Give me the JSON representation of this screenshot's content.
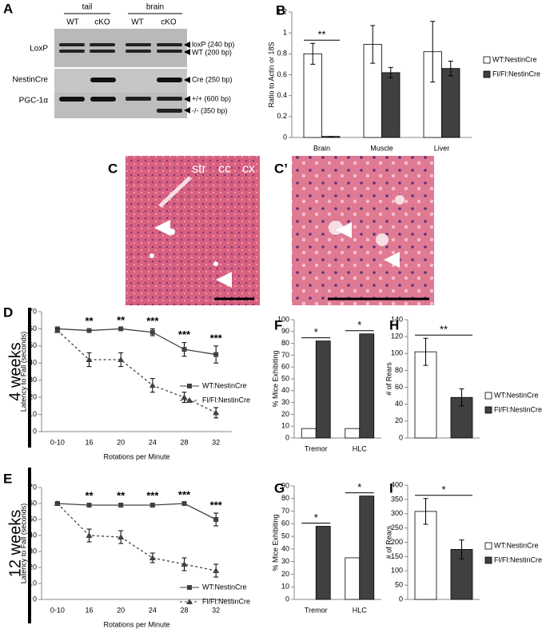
{
  "gel": {
    "panel": "A",
    "groups": [
      "tail",
      "brain"
    ],
    "lanes": [
      "WT",
      "cKO",
      "WT",
      "cKO"
    ],
    "rows": [
      "LoxP",
      "NestinCre",
      "PGC-1α"
    ],
    "bands": [
      "loxP (240 bp)",
      "WT (200 bp)",
      "Cre (250 bp)",
      "+/+ (600 bp)",
      "-/- (350 bp)"
    ]
  },
  "histology": {
    "panels": [
      "C",
      "C’"
    ],
    "regions": [
      "str",
      "cc",
      "cx"
    ]
  },
  "chart_data": [
    {
      "type": "bar",
      "panel": "B",
      "ylabel": "Ratio to Actin or 18S",
      "categories": [
        "Brain",
        "Muscle",
        "Liver"
      ],
      "series": [
        {
          "name": "WT:NestinCre",
          "color": "#ffffff",
          "values": [
            0.8,
            0.89,
            0.82
          ],
          "errors": [
            0.1,
            0.18,
            0.29
          ]
        },
        {
          "name": "Fl/Fl:NestinCre",
          "color": "#404040",
          "values": [
            0.01,
            0.62,
            0.66
          ],
          "errors": [
            0,
            0.05,
            0.07
          ]
        }
      ],
      "annotations": [
        "**",
        null,
        null
      ],
      "ylim": [
        0,
        1.2
      ],
      "yticks": [
        0,
        0.2,
        0.4,
        0.6,
        0.8,
        1,
        1.2
      ]
    },
    {
      "type": "line",
      "panel": "D",
      "side_label": "4 weeks",
      "xlabel": "Rotations per Minute",
      "ylabel": "Latency to Fall (seconds)",
      "categories": [
        "0-10",
        "16",
        "20",
        "24",
        "28",
        "32"
      ],
      "series": [
        {
          "name": "WT:NestinCre",
          "color": "#404040",
          "line_style": "solid",
          "marker": "square",
          "values": [
            60,
            59,
            60,
            58,
            48,
            45
          ],
          "errors": [
            1,
            1,
            0.5,
            2,
            4,
            5
          ]
        },
        {
          "name": "Fl/Fl:NestinCre",
          "color": "#404040",
          "line_style": "dashed",
          "marker": "triangle",
          "values": [
            59,
            42,
            42,
            27,
            20,
            11
          ],
          "errors": [
            1,
            4,
            4,
            4,
            3,
            3
          ]
        }
      ],
      "annotations": [
        null,
        "**",
        "**",
        "***",
        "***",
        "***"
      ],
      "ylim": [
        0,
        70
      ],
      "yticks": [
        0,
        10,
        20,
        30,
        40,
        50,
        60,
        70
      ]
    },
    {
      "type": "line",
      "panel": "E",
      "side_label": "12 weeks",
      "xlabel": "Rotations per Minute",
      "ylabel": "Latency to Fall (seconds)",
      "categories": [
        "0-10",
        "16",
        "20",
        "24",
        "28",
        "32"
      ],
      "series": [
        {
          "name": "WT:NestinCre",
          "color": "#404040",
          "line_style": "solid",
          "marker": "square",
          "values": [
            60,
            59,
            59,
            59,
            60,
            50
          ],
          "errors": [
            0.5,
            1,
            1,
            1,
            0.5,
            4
          ]
        },
        {
          "name": "Fl/Fl:NestinCre",
          "color": "#404040",
          "line_style": "dashed",
          "marker": "triangle",
          "values": [
            60,
            40,
            39,
            26,
            22,
            18
          ],
          "errors": [
            0.5,
            4,
            4,
            3,
            4,
            4
          ]
        }
      ],
      "annotations": [
        null,
        "**",
        "**",
        "***",
        "***",
        "***"
      ],
      "ylim": [
        0,
        70
      ],
      "yticks": [
        0,
        10,
        20,
        30,
        40,
        50,
        60,
        70
      ]
    },
    {
      "type": "bar",
      "panel": "F",
      "ylabel": "% Mice Exhibiting",
      "categories": [
        "Tremor",
        "HLC"
      ],
      "series": [
        {
          "name": "WT:NestinCre",
          "color": "#ffffff",
          "values": [
            8,
            8
          ]
        },
        {
          "name": "Fl/Fl:NestinCre",
          "color": "#404040",
          "values": [
            82,
            88
          ]
        }
      ],
      "annotations": [
        "*",
        "*"
      ],
      "ylim": [
        0,
        100
      ],
      "yticks": [
        0,
        10,
        20,
        30,
        40,
        50,
        60,
        70,
        80,
        90,
        100
      ]
    },
    {
      "type": "bar",
      "panel": "G",
      "ylabel": "% Mice Exhibiting",
      "categories": [
        "Tremor",
        "HLC"
      ],
      "series": [
        {
          "name": "WT:NestinCre",
          "color": "#ffffff",
          "values": [
            0,
            33
          ]
        },
        {
          "name": "Fl/Fl:NestinCre",
          "color": "#404040",
          "values": [
            58,
            82
          ]
        }
      ],
      "annotations": [
        "*",
        "*"
      ],
      "ylim": [
        0,
        90
      ],
      "yticks": [
        0,
        10,
        20,
        30,
        40,
        50,
        60,
        70,
        80,
        90
      ]
    },
    {
      "type": "bar",
      "panel": "H",
      "ylabel": "# of Rears",
      "categories": [
        null
      ],
      "series": [
        {
          "name": "WT:NestinCre",
          "color": "#ffffff",
          "values": [
            102
          ],
          "errors": [
            16
          ]
        },
        {
          "name": "Fl/Fl:NestinCre",
          "color": "#404040",
          "values": [
            48
          ],
          "errors": [
            10
          ]
        }
      ],
      "annotations": [
        "**"
      ],
      "ylim": [
        0,
        140
      ],
      "yticks": [
        0,
        20,
        40,
        60,
        80,
        100,
        120,
        140
      ]
    },
    {
      "type": "bar",
      "panel": "I",
      "ylabel": "# of Rears",
      "categories": [
        null
      ],
      "series": [
        {
          "name": "WT:NestinCre",
          "color": "#ffffff",
          "values": [
            308
          ],
          "errors": [
            45
          ]
        },
        {
          "name": "Fl/Fl:NestinCre",
          "color": "#404040",
          "values": [
            175
          ],
          "errors": [
            33
          ]
        }
      ],
      "annotations": [
        "*"
      ],
      "ylim": [
        0,
        400
      ],
      "yticks": [
        0,
        50,
        100,
        150,
        200,
        250,
        300,
        350,
        400
      ]
    }
  ]
}
